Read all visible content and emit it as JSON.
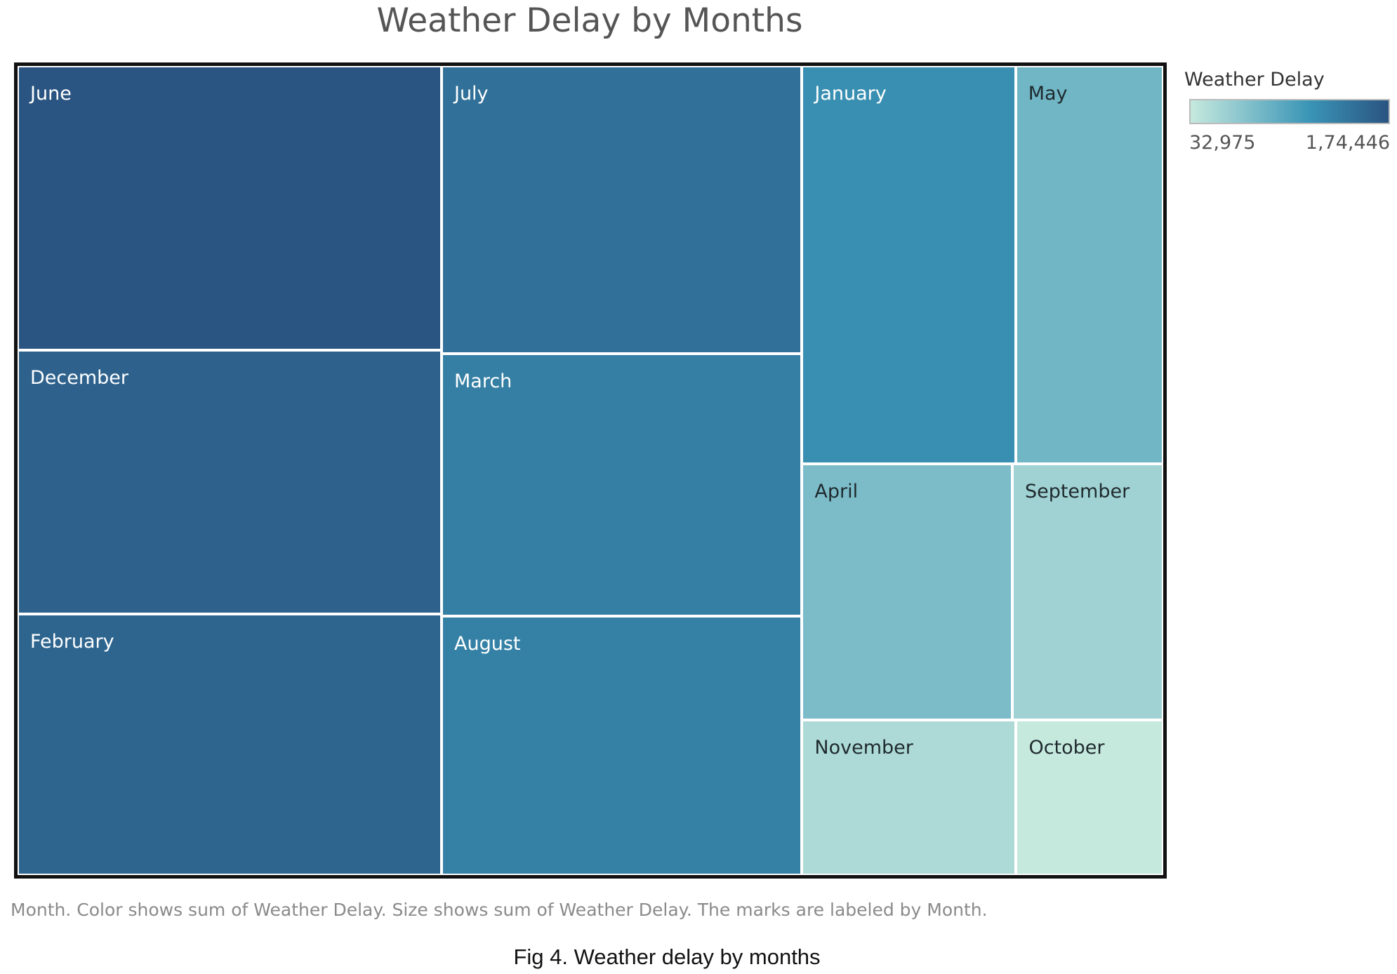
{
  "chart_data": {
    "type": "treemap",
    "title": "Weather Delay by Months",
    "color_legend": {
      "title": "Weather Delay",
      "min_label": "32,975",
      "max_label": "1,74,446",
      "min_value": 32975,
      "max_value": 174446,
      "color_low": "#c6e9de",
      "color_mid": "#3a95b6",
      "color_high": "#2a5481"
    },
    "months": [
      {
        "name": "June",
        "value": 174446
      },
      {
        "name": "December",
        "value": 162000
      },
      {
        "name": "February",
        "value": 160000
      },
      {
        "name": "July",
        "value": 150000
      },
      {
        "name": "March",
        "value": 137000
      },
      {
        "name": "August",
        "value": 135000
      },
      {
        "name": "January",
        "value": 123000
      },
      {
        "name": "May",
        "value": 85000
      },
      {
        "name": "April",
        "value": 78000
      },
      {
        "name": "September",
        "value": 56000
      },
      {
        "name": "November",
        "value": 48000
      },
      {
        "name": "October",
        "value": 32975
      }
    ]
  },
  "caption": "Month.  Color shows sum of Weather Delay.  Size shows sum of Weather Delay.  The marks are labeled by Month.",
  "figure_caption": "Fig 4. Weather delay by months"
}
